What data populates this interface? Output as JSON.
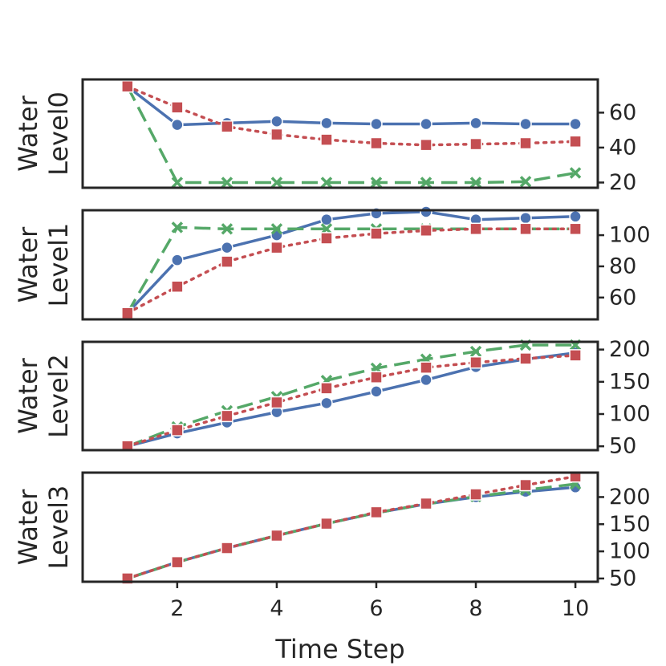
{
  "chart_data": {
    "type": "line",
    "xlabel": "Time Step",
    "x": [
      1,
      2,
      3,
      4,
      5,
      6,
      7,
      8,
      9,
      10
    ],
    "xlim": [
      0.1,
      10.45
    ],
    "xticks": [
      2,
      4,
      6,
      8,
      10
    ],
    "series_styles": [
      {
        "color": "#4c72b0",
        "dash": "",
        "marker": "circle"
      },
      {
        "color": "#55a868",
        "dash": "dashed",
        "marker": "x"
      },
      {
        "color": "#c44e52",
        "dash": "dotted",
        "marker": "square"
      }
    ],
    "subplots": [
      {
        "ylabel_lines": [
          "Water",
          "Level0"
        ],
        "ylim": [
          17,
          79
        ],
        "yticks": [
          20,
          40,
          60
        ],
        "series": [
          {
            "values": [
              75,
              53,
              54,
              55,
              54,
              53.5,
              53.5,
              54,
              53.5,
              53.5
            ]
          },
          {
            "values": [
              75,
              20,
              20,
              20,
              20,
              20,
              20,
              20,
              20.5,
              25.5
            ]
          },
          {
            "values": [
              75,
              63,
              52,
              47.5,
              44.5,
              42.5,
              41.5,
              42,
              42.5,
              43.5
            ]
          }
        ]
      },
      {
        "ylabel_lines": [
          "Water",
          "Level1"
        ],
        "ylim": [
          46,
          116
        ],
        "yticks": [
          60,
          80,
          100
        ],
        "series": [
          {
            "values": [
              50,
              84,
              92,
              100,
              110,
              114,
              115,
              110,
              111,
              112
            ]
          },
          {
            "values": [
              50,
              105,
              104,
              104,
              104,
              104,
              104,
              104,
              104,
              104
            ]
          },
          {
            "values": [
              50,
              67,
              83,
              92,
              98,
              101,
              103,
              104,
              104,
              104
            ]
          }
        ]
      },
      {
        "ylabel_lines": [
          "Water",
          "Level2"
        ],
        "ylim": [
          44,
          212
        ],
        "yticks": [
          50,
          100,
          150,
          200
        ],
        "series": [
          {
            "values": [
              50,
              70,
              87,
              103,
              117,
              135,
              153,
              173,
              185,
              195
            ]
          },
          {
            "values": [
              50,
              80,
              105,
              127,
              152,
              171,
              185,
              197,
              207,
              207
            ]
          },
          {
            "values": [
              50,
              75,
              97,
              118,
              140,
              157,
              172,
              180,
              186,
              191
            ]
          }
        ]
      },
      {
        "ylabel_lines": [
          "Water",
          "Level3"
        ],
        "ylim": [
          44,
          245
        ],
        "yticks": [
          50,
          100,
          150,
          200
        ],
        "series": [
          {
            "values": [
              50,
              80,
              106,
              129,
              151,
              171,
              187,
              200,
              210,
              218
            ]
          },
          {
            "values": [
              50,
              80,
              106,
              129,
              151,
              171,
              187,
              201,
              213,
              224
            ]
          },
          {
            "values": [
              50,
              80,
              106,
              129,
              151,
              172,
              188,
              205,
              222,
              238
            ]
          }
        ]
      }
    ]
  }
}
